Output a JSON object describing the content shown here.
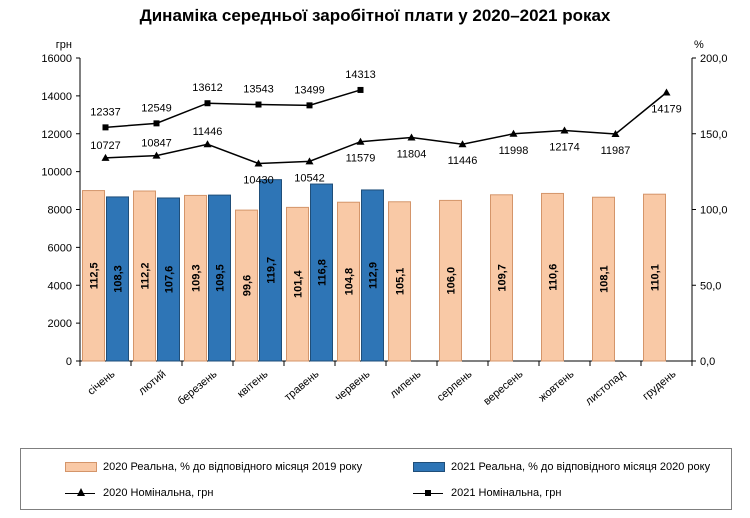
{
  "chart_data": {
    "type": "bar",
    "title": "Динаміка середньої заробітної плати у 2020–2021 роках",
    "y_left_unit": "грн",
    "y_right_unit": "%",
    "y_left_ticks": [
      "0",
      "2000",
      "4000",
      "6000",
      "8000",
      "10000",
      "12000",
      "14000",
      "16000"
    ],
    "y_right_ticks": [
      "0,0",
      "50,0",
      "100,0",
      "150,0",
      "200,0"
    ],
    "ylim_left": [
      0,
      16000
    ],
    "ylim_right": [
      0,
      200
    ],
    "categories": [
      "січень",
      "лютий",
      "березень",
      "квітень",
      "травень",
      "червень",
      "липень",
      "серпень",
      "вересень",
      "жовтень",
      "листопад",
      "грудень"
    ],
    "series": [
      {
        "name": "2020 Реальна, % до відповідного місяця 2019 року",
        "kind": "bar",
        "axis": "right",
        "color": "#f9c9a6",
        "border": "#d4956a",
        "values": [
          112.5,
          112.2,
          109.3,
          99.6,
          101.4,
          104.8,
          105.1,
          106.0,
          109.7,
          110.6,
          108.1,
          110.1
        ],
        "labels": [
          "112,5",
          "112,2",
          "109,3",
          "99,6",
          "101,4",
          "104,8",
          "105,1",
          "106,0",
          "109,7",
          "110,6",
          "108,1",
          "110,1"
        ]
      },
      {
        "name": "2021 Реальна, % до відповідного місяця 2020 року",
        "kind": "bar",
        "axis": "right",
        "color": "#2e75b6",
        "border": "#1f4e79",
        "values": [
          108.3,
          107.6,
          109.5,
          119.7,
          116.8,
          112.9,
          null,
          null,
          null,
          null,
          null,
          null
        ],
        "labels": [
          "108,3",
          "107,6",
          "109,5",
          "119,7",
          "116,8",
          "112,9",
          null,
          null,
          null,
          null,
          null,
          null
        ]
      },
      {
        "name": "2020 Номінальна, грн",
        "kind": "line",
        "axis": "left",
        "marker": "triangle",
        "color": "#000000",
        "values": [
          10727,
          10847,
          11446,
          10430,
          10542,
          11579,
          11804,
          11446,
          11998,
          12174,
          11987,
          14179
        ],
        "labels": [
          "10727",
          "10847",
          "11446",
          "10430",
          "10542",
          "11579",
          "11804",
          "11446",
          "11998",
          "12174",
          "11987",
          "14179"
        ]
      },
      {
        "name": "2021 Номінальна, грн",
        "kind": "line",
        "axis": "left",
        "marker": "square",
        "color": "#000000",
        "values": [
          12337,
          12549,
          13612,
          13543,
          13499,
          14313,
          null,
          null,
          null,
          null,
          null,
          null
        ],
        "labels": [
          "12337",
          "12549",
          "13612",
          "13543",
          "13499",
          "14313",
          null,
          null,
          null,
          null,
          null,
          null
        ]
      }
    ],
    "legend_position": "bottom",
    "grid": false
  }
}
